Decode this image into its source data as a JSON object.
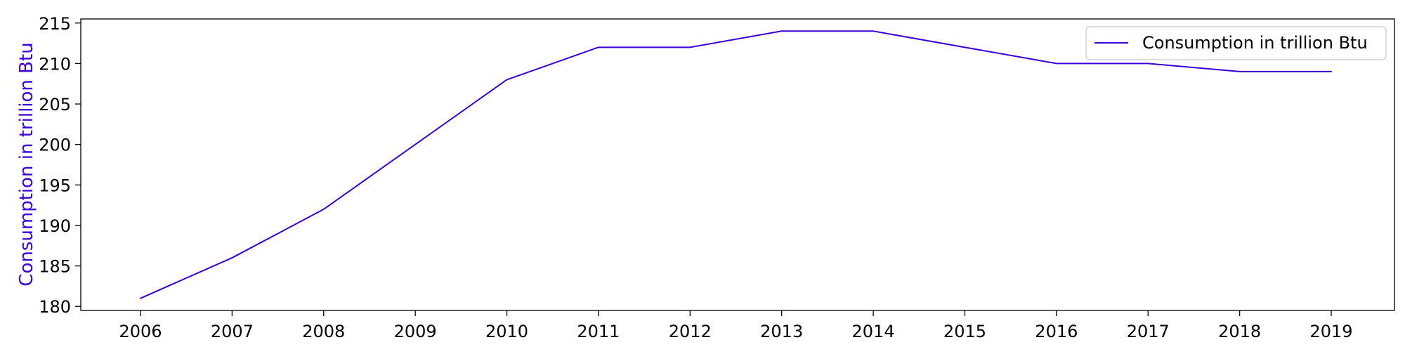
{
  "chart_data": {
    "type": "line",
    "title": "",
    "xlabel": "",
    "ylabel": "Consumption in trillion Btu",
    "x": [
      "2006",
      "2007",
      "2008",
      "2009",
      "2010",
      "2011",
      "2012",
      "2013",
      "2014",
      "2015",
      "2016",
      "2017",
      "2018",
      "2019"
    ],
    "series": [
      {
        "name": "Consumption in trillion Btu",
        "values": [
          181,
          186,
          192,
          200,
          208,
          212,
          212,
          214,
          214,
          212,
          210,
          210,
          209,
          209
        ],
        "color": "#3b00d8"
      }
    ],
    "ylim": [
      179.5,
      215.5
    ],
    "yticks": [
      180,
      185,
      190,
      195,
      200,
      205,
      210,
      215
    ],
    "grid": false,
    "legend": "top-right"
  }
}
